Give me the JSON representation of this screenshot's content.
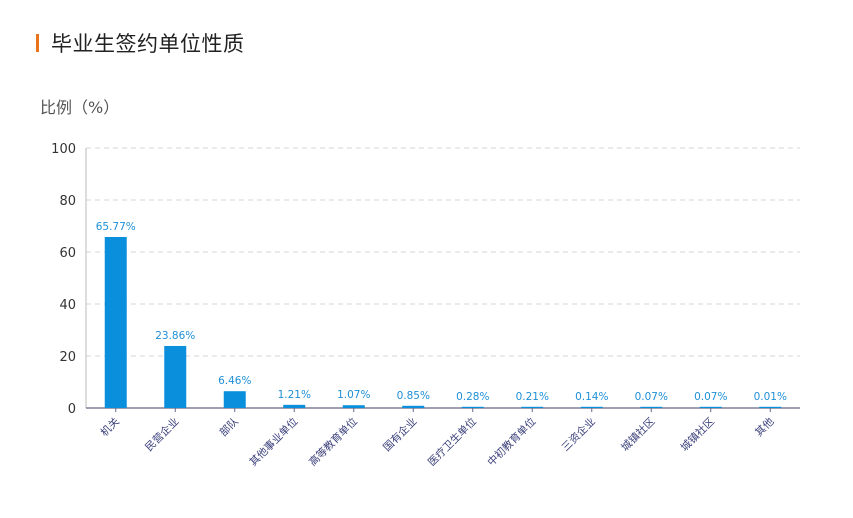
{
  "page": {
    "title": "毕业生签约单位性质",
    "accent_color": "#e8731c"
  },
  "chart_data": {
    "type": "bar",
    "ylabel": "比例（%）",
    "ylim": [
      0,
      100
    ],
    "yticks": [
      0,
      20,
      40,
      60,
      80,
      100
    ],
    "grid": "horizontal-dashed",
    "bar_color": "#0a8fdc",
    "categories": [
      "机关",
      "民营企业",
      "部队",
      "其他事业单位",
      "高等教育单位",
      "国有企业",
      "医疗卫生单位",
      "中初教育单位",
      "三资企业",
      "城镇社区",
      "城镇社区",
      "其他"
    ],
    "values": [
      65.77,
      23.86,
      6.46,
      1.21,
      1.07,
      0.85,
      0.28,
      0.21,
      0.14,
      0.07,
      0.07,
      0.01
    ],
    "value_labels": [
      "65.77%",
      "23.86%",
      "6.46%",
      "1.21%",
      "1.07%",
      "0.85%",
      "0.28%",
      "0.21%",
      "0.14%",
      "0.07%",
      "0.07%",
      "0.01%"
    ]
  }
}
